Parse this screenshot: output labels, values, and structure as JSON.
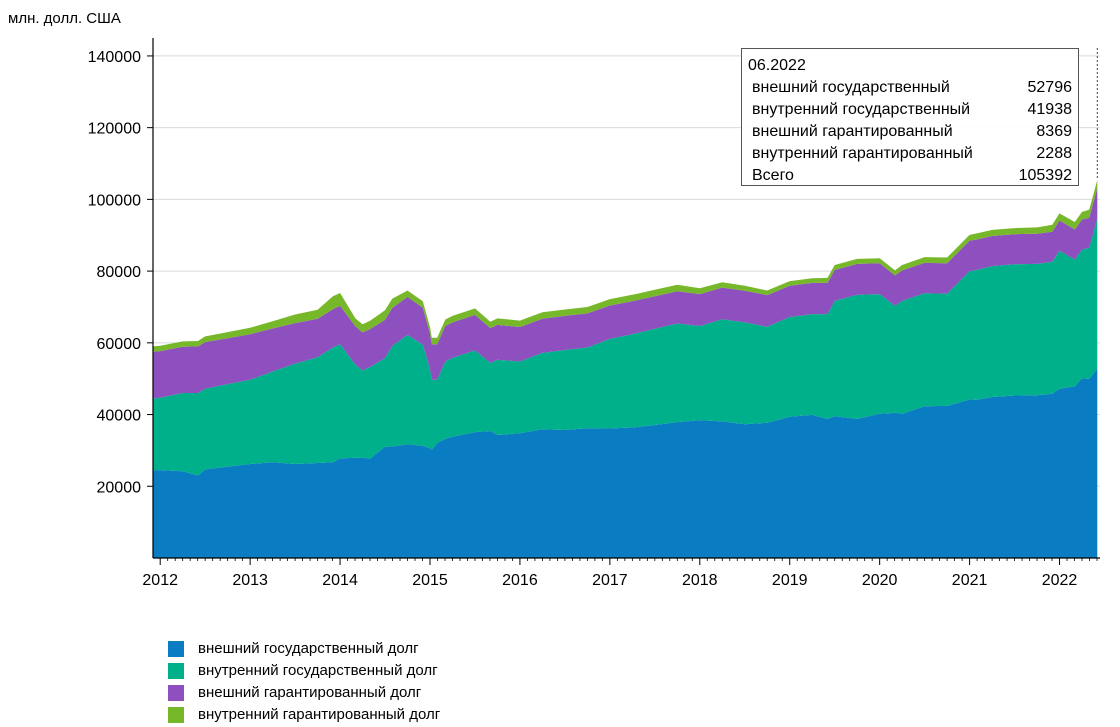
{
  "chart_data": {
    "type": "area",
    "stacked": true,
    "ylabel": "млн. долл. США",
    "ylim": [
      0,
      145000
    ],
    "yticks": [
      20000,
      40000,
      60000,
      80000,
      100000,
      120000,
      140000
    ],
    "xlim": [
      2011.92,
      2022.45
    ],
    "xticks": [
      "2012",
      "2013",
      "2014",
      "2015",
      "2016",
      "2017",
      "2018",
      "2019",
      "2020",
      "2021",
      "2022"
    ],
    "x": [
      2011.92,
      2012.0,
      2012.25,
      2012.42,
      2012.5,
      2012.75,
      2013.0,
      2013.25,
      2013.5,
      2013.75,
      2013.92,
      2014.0,
      2014.17,
      2014.25,
      2014.33,
      2014.5,
      2014.58,
      2014.75,
      2014.92,
      2015.0,
      2015.02,
      2015.08,
      2015.17,
      2015.25,
      2015.5,
      2015.67,
      2015.75,
      2016.0,
      2016.25,
      2016.5,
      2016.75,
      2017.0,
      2017.25,
      2017.5,
      2017.75,
      2018.0,
      2018.25,
      2018.5,
      2018.75,
      2019.0,
      2019.25,
      2019.42,
      2019.5,
      2019.75,
      2020.0,
      2020.17,
      2020.25,
      2020.5,
      2020.75,
      2021.0,
      2021.08,
      2021.25,
      2021.5,
      2021.75,
      2021.92,
      2022.0,
      2022.17,
      2022.25,
      2022.33,
      2022.42
    ],
    "series": [
      {
        "name": "внешний государственный долг",
        "color": "#0a7cc2",
        "values": [
          24500,
          24500,
          24200,
          23000,
          24700,
          25500,
          26200,
          26700,
          26200,
          26500,
          26700,
          27800,
          27900,
          28000,
          27700,
          31000,
          31100,
          31700,
          31300,
          30600,
          30200,
          32100,
          33200,
          33800,
          35100,
          35400,
          34300,
          34800,
          35900,
          35700,
          36200,
          36100,
          36400,
          37100,
          37900,
          38400,
          38100,
          37300,
          37700,
          39400,
          39900,
          38800,
          39500,
          38800,
          40200,
          40500,
          40200,
          42300,
          42400,
          44200,
          44100,
          44900,
          45300,
          45400,
          45800,
          47200,
          47900,
          50100,
          49900,
          52800
        ]
      },
      {
        "name": "внутренний государственный долг",
        "color": "#00b08a",
        "values": [
          20000,
          20200,
          21800,
          23000,
          22500,
          23000,
          23500,
          25300,
          28000,
          29500,
          32000,
          31800,
          26000,
          24300,
          25500,
          24800,
          28000,
          30500,
          28200,
          22000,
          19500,
          17600,
          21600,
          22000,
          22800,
          19000,
          21000,
          20000,
          21300,
          22300,
          22500,
          25000,
          26000,
          26800,
          27500,
          26300,
          28500,
          28400,
          26800,
          27800,
          28100,
          29200,
          32200,
          34600,
          33400,
          29800,
          31500,
          31500,
          31300,
          35800,
          36200,
          36500,
          36600,
          36600,
          36800,
          38500,
          35300,
          35900,
          36600,
          41938
        ]
      },
      {
        "name": "внешний гарантированный долг",
        "color": "#8e4fbf",
        "values": [
          13000,
          13000,
          12900,
          13000,
          13000,
          12800,
          12700,
          12000,
          11300,
          10700,
          10700,
          10700,
          10700,
          10600,
          10600,
          10600,
          10600,
          10600,
          10300,
          10000,
          9900,
          9900,
          9900,
          9900,
          9900,
          9700,
          9700,
          9600,
          9500,
          9500,
          9500,
          9300,
          9200,
          9100,
          9000,
          8900,
          8800,
          8800,
          8800,
          8700,
          8700,
          8700,
          8600,
          8600,
          8600,
          8500,
          8500,
          8500,
          8500,
          8500,
          8500,
          8400,
          8400,
          8400,
          8400,
          8400,
          8400,
          8400,
          8400,
          8369
        ]
      },
      {
        "name": "внутренний гарантированный долг",
        "color": "#76b82a",
        "values": [
          1500,
          1500,
          1500,
          1500,
          1600,
          1700,
          1800,
          2000,
          2400,
          2500,
          3600,
          3600,
          2200,
          2300,
          2300,
          2700,
          2600,
          1800,
          1800,
          1800,
          1800,
          1800,
          1800,
          1800,
          1800,
          1800,
          1800,
          1800,
          1800,
          1800,
          1800,
          1800,
          1800,
          1800,
          1800,
          1600,
          1500,
          1400,
          1300,
          1300,
          1300,
          1400,
          1400,
          1400,
          1400,
          1400,
          1500,
          1600,
          1600,
          1600,
          1700,
          1700,
          1700,
          1800,
          1900,
          2000,
          2100,
          2100,
          2200,
          2288
        ]
      }
    ],
    "legend": [
      "внешний государственный долг",
      "внутренний государственный долг",
      "внешний гарантированный долг",
      "внутренний гарантированный долг"
    ],
    "annotation": {
      "x": 2022.42,
      "date": "06.2022",
      "rows": [
        {
          "label": "внешний государственный",
          "value": "52796"
        },
        {
          "label": "внутренний государственный",
          "value": "41938"
        },
        {
          "label": "внешний гарантированный",
          "value": "8369"
        },
        {
          "label": "внутренний гарантированный",
          "value": "2288"
        },
        {
          "label": "Всего",
          "value": "105392"
        }
      ]
    }
  }
}
